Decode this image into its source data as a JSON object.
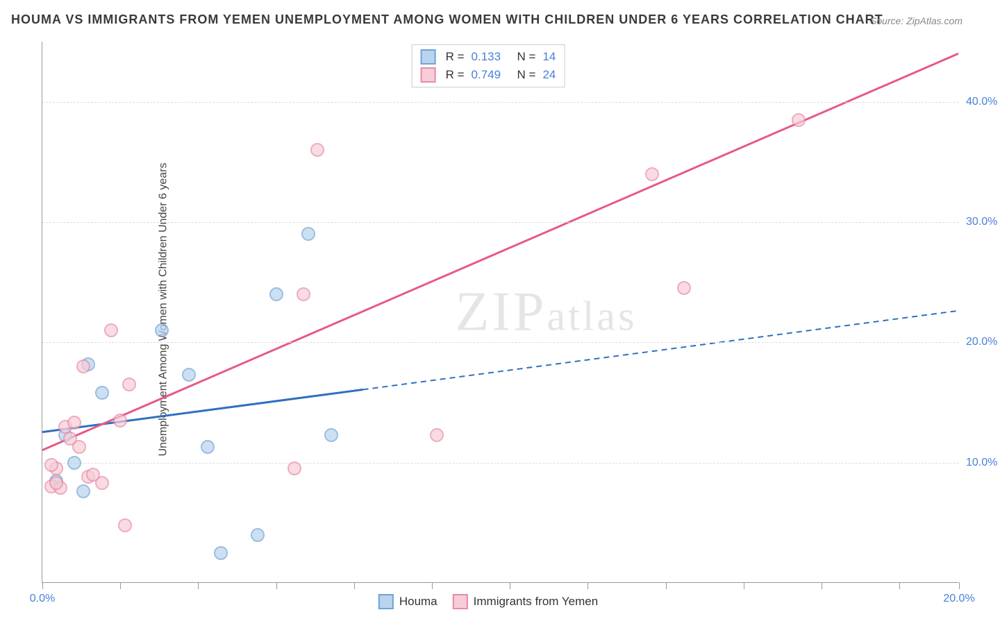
{
  "title": "HOUMA VS IMMIGRANTS FROM YEMEN UNEMPLOYMENT AMONG WOMEN WITH CHILDREN UNDER 6 YEARS CORRELATION CHART",
  "source": "Source: ZipAtlas.com",
  "ylabel": "Unemployment Among Women with Children Under 6 years",
  "watermark": "ZIPatlas",
  "chart": {
    "type": "scatter",
    "xlim": [
      0,
      20
    ],
    "ylim": [
      0,
      45
    ],
    "yticks": [
      10,
      20,
      30,
      40
    ],
    "ytick_labels": [
      "10.0%",
      "20.0%",
      "30.0%",
      "40.0%"
    ],
    "xticks": [
      0,
      1.7,
      3.4,
      5.1,
      6.8,
      8.5,
      10.2,
      11.9,
      13.6,
      15.3,
      17.0,
      18.7,
      20.0
    ],
    "xtick_labels_shown": {
      "0": "0.0%",
      "20": "20.0%"
    },
    "background_color": "#ffffff",
    "grid_color": "#dddddd",
    "marker_radius": 10,
    "label_color": "#4a7fd8"
  },
  "series": [
    {
      "name": "Houma",
      "fill": "#b9d4ed",
      "stroke": "#6fa3d8",
      "line_color": "#2f6fc0",
      "r_label": "R =",
      "r_value": "0.133",
      "n_label": "N =",
      "n_value": "14",
      "points": [
        [
          0.5,
          12.3
        ],
        [
          1.0,
          18.2
        ],
        [
          1.3,
          15.8
        ],
        [
          0.7,
          10.0
        ],
        [
          0.9,
          7.6
        ],
        [
          0.3,
          8.5
        ],
        [
          2.6,
          21.0
        ],
        [
          3.2,
          17.3
        ],
        [
          5.1,
          24.0
        ],
        [
          3.6,
          11.3
        ],
        [
          5.8,
          29.0
        ],
        [
          6.3,
          12.3
        ],
        [
          4.7,
          4.0
        ],
        [
          3.9,
          2.5
        ]
      ],
      "regression": {
        "x1": 0,
        "y1": 12.5,
        "x2": 20,
        "y2": 22.6,
        "solid_until_x": 7.0
      }
    },
    {
      "name": "Immigrants from Yemen",
      "fill": "#f7cdd7",
      "stroke": "#e88aa5",
      "line_color": "#e65a87",
      "r_label": "R =",
      "r_value": "0.749",
      "n_label": "N =",
      "n_value": "24",
      "points": [
        [
          0.2,
          8.0
        ],
        [
          0.3,
          9.5
        ],
        [
          0.4,
          7.9
        ],
        [
          0.5,
          13.0
        ],
        [
          0.6,
          12.0
        ],
        [
          0.7,
          13.3
        ],
        [
          0.8,
          11.3
        ],
        [
          1.0,
          8.8
        ],
        [
          1.1,
          9.0
        ],
        [
          1.3,
          8.3
        ],
        [
          0.9,
          18.0
        ],
        [
          1.5,
          21.0
        ],
        [
          1.7,
          13.5
        ],
        [
          1.9,
          16.5
        ],
        [
          5.7,
          24.0
        ],
        [
          5.5,
          9.5
        ],
        [
          1.8,
          4.8
        ],
        [
          6.0,
          36.0
        ],
        [
          8.6,
          12.3
        ],
        [
          13.3,
          34.0
        ],
        [
          14.0,
          24.5
        ],
        [
          16.5,
          38.5
        ],
        [
          0.2,
          9.8
        ],
        [
          0.3,
          8.3
        ]
      ],
      "regression": {
        "x1": 0,
        "y1": 11.0,
        "x2": 20,
        "y2": 44.0,
        "solid_until_x": 20
      }
    }
  ],
  "legend_bottom": {
    "items": [
      "Houma",
      "Immigrants from Yemen"
    ]
  }
}
